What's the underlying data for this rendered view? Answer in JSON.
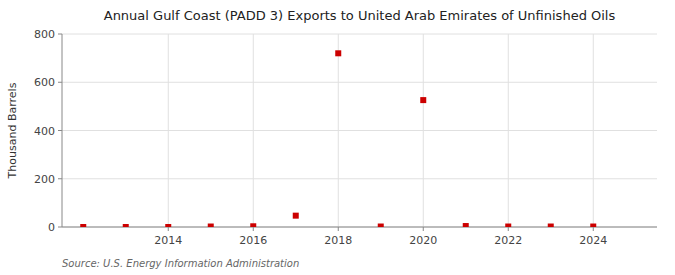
{
  "chart_data": {
    "type": "scatter",
    "title": "Annual Gulf Coast (PADD 3) Exports to United Arab Emirates of Unfinished Oils",
    "y_label": "Thousand Barrels",
    "annotations": [
      "Source: U.S. Energy Information Administration"
    ],
    "x": [
      2012,
      2013,
      2014,
      2015,
      2016,
      2017,
      2018,
      2019,
      2020,
      2021,
      2022,
      2023,
      2024
    ],
    "values": [
      0,
      0,
      0,
      2,
      3,
      47,
      720,
      2,
      526,
      4,
      2,
      2,
      2
    ],
    "color": "#cc0000",
    "marker": "square",
    "xlim": [
      2011.5,
      2025.5
    ],
    "xticks": [
      2014,
      2016,
      2018,
      2020,
      2022,
      2024
    ],
    "ylim": [
      0,
      800
    ],
    "yticks": [
      0,
      200,
      400,
      600,
      800
    ],
    "grid": true
  }
}
